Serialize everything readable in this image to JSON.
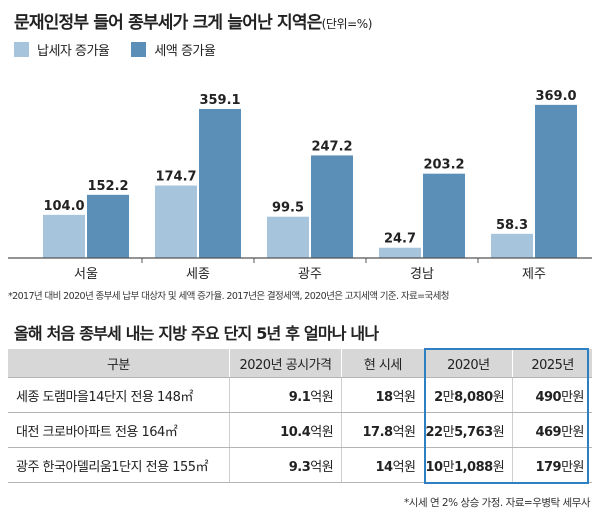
{
  "title": "문재인정부 들어 종부세가 크게 늘어난 지역은",
  "unit": "(단위=%)",
  "colors": {
    "series1": "#a6c4dc",
    "series2": "#5b8fb8",
    "axis": "#555555",
    "highlight": "#2f80c3"
  },
  "chart_data": {
    "type": "bar",
    "title": "문재인정부 들어 종부세가 크게 늘어난 지역은",
    "ylabel": "(단위=%)",
    "xlabel": "",
    "ylim": [
      0,
      400
    ],
    "categories": [
      "서울",
      "세종",
      "광주",
      "경남",
      "제주"
    ],
    "series": [
      {
        "name": "납세자 증가율",
        "values": [
          104.0,
          174.7,
          99.5,
          24.7,
          58.3
        ],
        "labels": [
          "104.0",
          "174.7",
          "99.5",
          "24.7",
          "58.3"
        ]
      },
      {
        "name": "세액 증가율",
        "values": [
          152.2,
          359.1,
          247.2,
          203.2,
          369.0
        ],
        "labels": [
          "152.2",
          "359.1",
          "247.2",
          "203.2",
          "369.0"
        ]
      }
    ],
    "legend": "top-left",
    "grid": false
  },
  "footnote1": "*2017년 대비 2020년 종부세 납부 대상자 및 세액 증가율. 2017년은 결정세액, 2020년은 고지세액 기준. 자료=국세청",
  "table_title": "올해 처음 종부세 내는 지방 주요 단지 5년 후 얼마나 내나",
  "table": {
    "headers": [
      "구분",
      "2020년 공시가격",
      "현 시세",
      "2020년",
      "2025년"
    ],
    "rows": [
      {
        "name": "세종 도램마을14단지 전용 148㎡",
        "price_num": "9.1",
        "price_unit": "억원",
        "market_num": "18",
        "market_unit": "억원",
        "y2020_1": "2",
        "y2020_u1": "만",
        "y2020_2": "8,080",
        "y2020_u2": "원",
        "y2025_num": "490",
        "y2025_unit": "만원"
      },
      {
        "name": "대전 크로바아파트 전용 164㎡",
        "price_num": "10.4",
        "price_unit": "억원",
        "market_num": "17.8",
        "market_unit": "억원",
        "y2020_1": "22",
        "y2020_u1": "만",
        "y2020_2": "5,763",
        "y2020_u2": "원",
        "y2025_num": "469",
        "y2025_unit": "만원"
      },
      {
        "name": "광주 한국아델리움1단지 전용 155㎡",
        "price_num": "9.3",
        "price_unit": "억원",
        "market_num": "14",
        "market_unit": "억원",
        "y2020_1": "10",
        "y2020_u1": "만",
        "y2020_2": "1,088",
        "y2020_u2": "원",
        "y2025_num": "179",
        "y2025_unit": "만원"
      }
    ]
  },
  "footnote2": "*시세 연 2% 상승 가정. 자료=우병탁 세무사"
}
